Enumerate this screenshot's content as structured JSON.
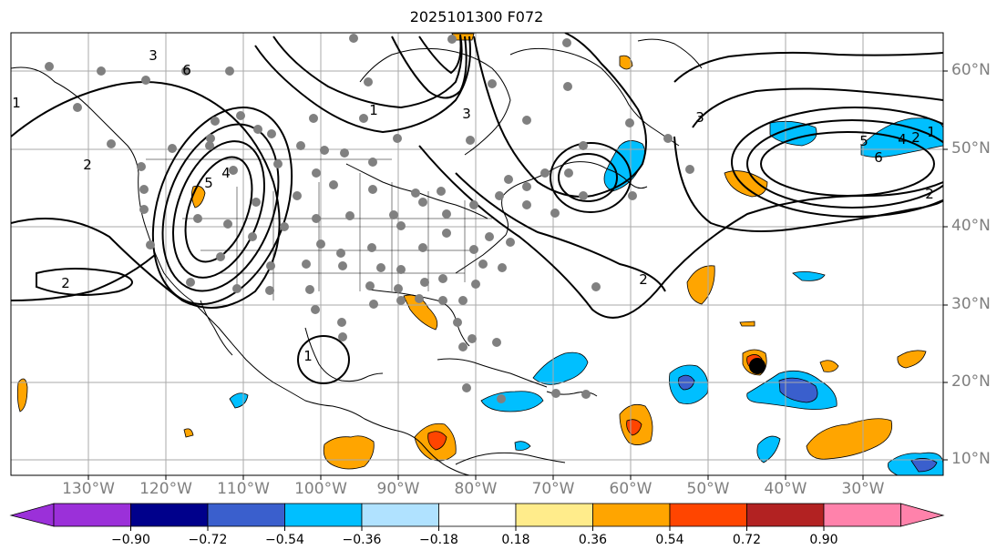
{
  "title": "2025101300 F072",
  "lat_labels": [
    "60°N",
    "50°N",
    "40°N",
    "30°N",
    "20°N",
    "10°N"
  ],
  "lon_labels": [
    "130°W",
    "120°W",
    "110°W",
    "100°W",
    "90°W",
    "80°W",
    "70°W",
    "60°W",
    "50°W",
    "40°W",
    "30°W"
  ],
  "colorbar": {
    "levels": [
      "−0.90",
      "−0.72",
      "−0.54",
      "−0.36",
      "−0.18",
      "0.18",
      "0.36",
      "0.54",
      "0.72",
      "0.90"
    ],
    "colors": [
      "#9b30d9",
      "#00008b",
      "#3a5fcd",
      "#00bfff",
      "#b0e2ff",
      "#ffffff",
      "#ffec8b",
      "#ffa500",
      "#ff4500",
      "#b22222",
      "#ff82ab"
    ]
  },
  "contour_labels": [
    "1",
    "2",
    "3",
    "4",
    "5",
    "6",
    "2",
    "1",
    "3",
    "2",
    "1",
    "2",
    "3",
    "4",
    "5",
    "6",
    "2",
    "1"
  ]
}
